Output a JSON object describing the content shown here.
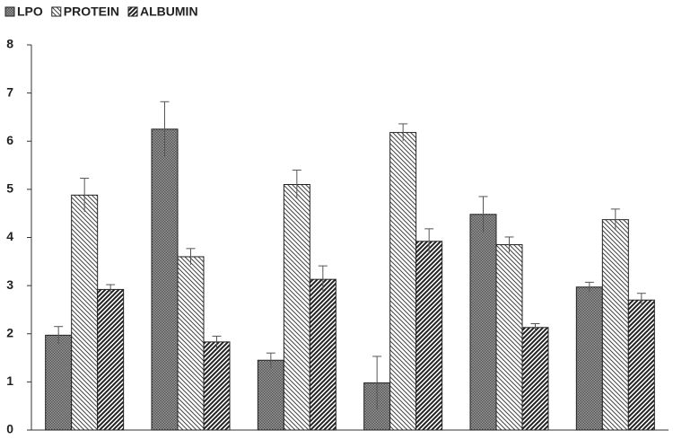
{
  "chart_data": {
    "type": "bar",
    "categories": [
      null,
      null,
      null,
      null,
      null,
      null
    ],
    "series": [
      {
        "name": "LPO",
        "color": "#555555",
        "hatch": "dots",
        "values": [
          1.97,
          6.25,
          1.45,
          0.98,
          4.48,
          2.97
        ],
        "errors": [
          0.18,
          0.57,
          0.15,
          0.55,
          0.37,
          0.1
        ]
      },
      {
        "name": "PROTEIN",
        "color": "#444444",
        "hatch": "back",
        "values": [
          4.88,
          3.6,
          5.1,
          6.18,
          3.85,
          4.37
        ],
        "errors": [
          0.35,
          0.17,
          0.3,
          0.18,
          0.16,
          0.22
        ]
      },
      {
        "name": "ALBUMIN",
        "color": "#222222",
        "hatch": "forward",
        "values": [
          2.92,
          1.83,
          3.13,
          3.92,
          2.13,
          2.7
        ],
        "errors": [
          0.1,
          0.12,
          0.28,
          0.26,
          0.08,
          0.14
        ]
      }
    ],
    "ylim": [
      0,
      8
    ],
    "yticks": [
      0,
      1,
      2,
      3,
      4,
      5,
      6,
      7,
      8
    ],
    "grid": false,
    "legend": "top-left"
  }
}
